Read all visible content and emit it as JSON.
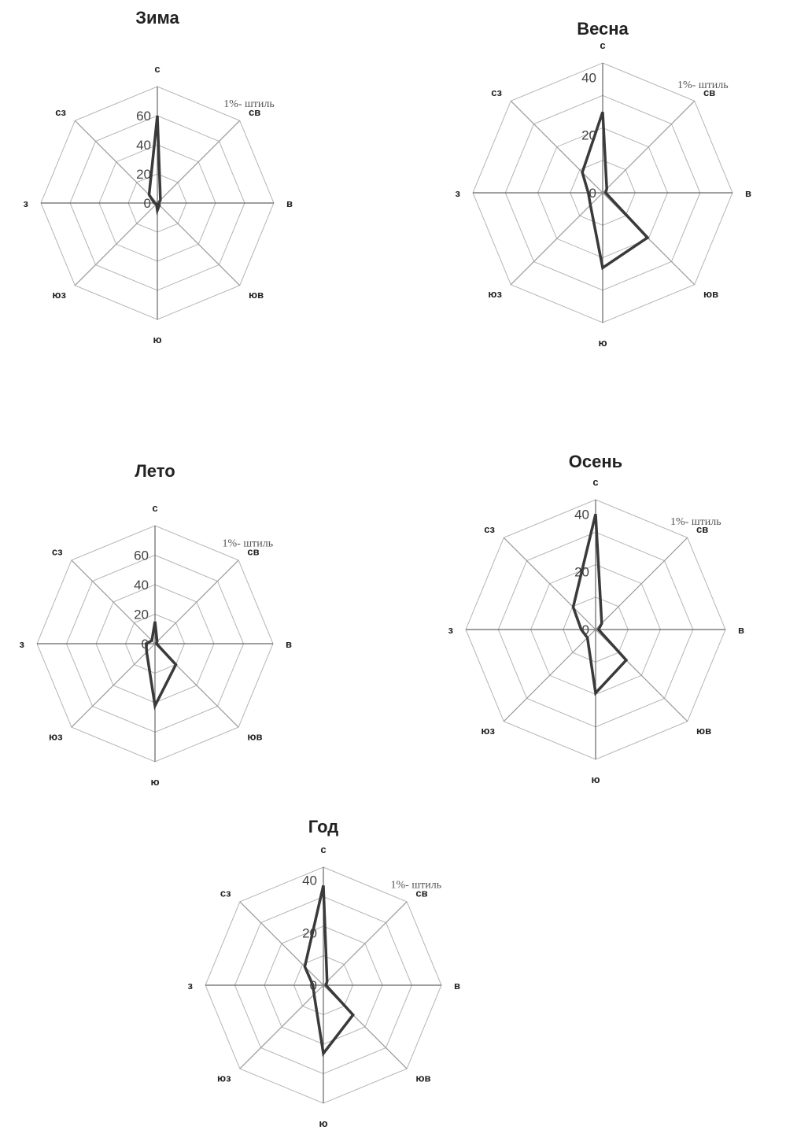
{
  "chart_data": [
    {
      "type": "radar",
      "title": "Зима",
      "categories": [
        "с",
        "св",
        "в",
        "юв",
        "ю",
        "юз",
        "з",
        "сз"
      ],
      "values": [
        60,
        3,
        1,
        2,
        5,
        1,
        2,
        8
      ],
      "ticks": [
        "0",
        "20",
        "40",
        "60"
      ],
      "rmax": 80,
      "note": "1%- штиль"
    },
    {
      "type": "radar",
      "title": "Весна",
      "categories": [
        "с",
        "св",
        "в",
        "юв",
        "ю",
        "юз",
        "з",
        "сз"
      ],
      "values": [
        28,
        2,
        1,
        22,
        26,
        6,
        5,
        10
      ],
      "ticks": [
        "0",
        "20",
        "40"
      ],
      "rmax": 45,
      "note": "1%- штиль"
    },
    {
      "type": "radar",
      "title": "Лето",
      "categories": [
        "с",
        "св",
        "в",
        "юв",
        "ю",
        "юз",
        "з",
        "сз"
      ],
      "values": [
        15,
        2,
        1,
        20,
        42,
        8,
        6,
        3
      ],
      "ticks": [
        "0",
        "20",
        "40",
        "60"
      ],
      "rmax": 80,
      "note": "1%- штиль"
    },
    {
      "type": "radar",
      "title": "Осень",
      "categories": [
        "с",
        "св",
        "в",
        "юв",
        "ю",
        "юз",
        "з",
        "сз"
      ],
      "values": [
        40,
        3,
        1,
        15,
        22,
        4,
        5,
        11
      ],
      "ticks": [
        "0",
        "20",
        "40"
      ],
      "rmax": 45,
      "note": "1%- штиль"
    },
    {
      "type": "radar",
      "title": "Год",
      "categories": [
        "с",
        "св",
        "в",
        "юв",
        "ю",
        "юз",
        "з",
        "сз"
      ],
      "values": [
        38,
        2,
        1,
        16,
        26,
        5,
        4,
        10
      ],
      "ticks": [
        "0",
        "20",
        "40"
      ],
      "rmax": 45,
      "note": "1%- штиль"
    }
  ]
}
